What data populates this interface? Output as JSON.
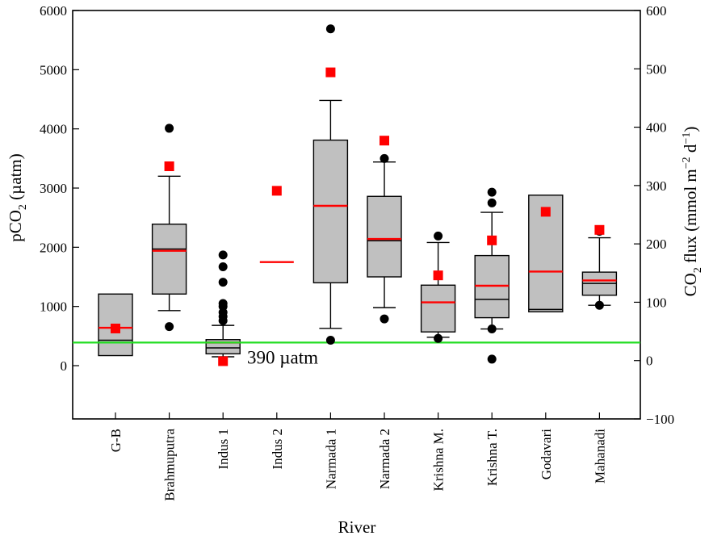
{
  "chart_data": {
    "type": "box",
    "xlabel": "River",
    "ylabel_main": "pCO",
    "ylabel_main_sub": "2",
    "ylabel_main_unit": " (µatm)",
    "ylabel_right": {
      "a": "CO",
      "sub": "2",
      "b": " flux (mmol m",
      "sup1": "−2",
      "c": " d",
      "sup2": "−1",
      "d": ")"
    },
    "ylim_left": [
      -900,
      6000
    ],
    "ylim_right": [
      -100,
      600
    ],
    "yticks_left": [
      0,
      1000,
      2000,
      3000,
      4000,
      5000,
      6000
    ],
    "yticks_right": [
      -100,
      0,
      100,
      200,
      300,
      400,
      500,
      600
    ],
    "categories": [
      "G-B",
      "Brahmuputra",
      "Indus 1",
      "Indus 2",
      "Narmada 1",
      "Narmada 2",
      "Krishna M.",
      "Krishna T.",
      "Godavari",
      "Mahanadi"
    ],
    "reference_line": {
      "value": 390,
      "label": "390 µatm",
      "color": "#22dd22"
    },
    "colors": {
      "box": "#c0c0c0",
      "mean": "#ff0000",
      "flux": "#ff0000",
      "outlier": "#000000",
      "median": "#000000"
    },
    "boxes": [
      {
        "q1": 170,
        "median": 430,
        "q3": 1210,
        "whisker_low": null,
        "whisker_high": null,
        "mean": 640,
        "outliers": [],
        "flux": 55
      },
      {
        "q1": 1210,
        "median": 1970,
        "q3": 2390,
        "whisker_low": 930,
        "whisker_high": 3200,
        "mean": 1940,
        "outliers": [
          660,
          4010
        ],
        "flux": 333
      },
      {
        "q1": 200,
        "median": 300,
        "q3": 440,
        "whisker_low": 150,
        "whisker_high": 680,
        "mean": 390,
        "outliers": [
          900,
          1000,
          1050,
          1410,
          1670,
          1870,
          760,
          830
        ],
        "flux": -1
      },
      {
        "q1": null,
        "median": null,
        "q3": null,
        "whisker_low": null,
        "whisker_high": null,
        "mean": 1750,
        "outliers": [],
        "flux": 291
      },
      {
        "q1": 1400,
        "median": 2700,
        "q3": 3810,
        "whisker_low": 630,
        "whisker_high": 4480,
        "mean": 2700,
        "outliers": [
          430,
          5690
        ],
        "flux": 494
      },
      {
        "q1": 1500,
        "median": 2110,
        "q3": 2860,
        "whisker_low": 980,
        "whisker_high": 3440,
        "mean": 2140,
        "outliers": [
          790,
          3500
        ],
        "flux": 377
      },
      {
        "q1": 570,
        "median": 1070,
        "q3": 1360,
        "whisker_low": 480,
        "whisker_high": 2080,
        "mean": 1070,
        "outliers": [
          460,
          2190
        ],
        "flux": 146
      },
      {
        "q1": 810,
        "median": 1120,
        "q3": 1860,
        "whisker_low": 620,
        "whisker_high": 2590,
        "mean": 1350,
        "outliers": [
          110,
          620,
          2750,
          2930
        ],
        "flux": 206
      },
      {
        "q1": 910,
        "median": 950,
        "q3": 2880,
        "whisker_low": null,
        "whisker_high": null,
        "mean": 1590,
        "outliers": [],
        "flux": 255
      },
      {
        "q1": 1190,
        "median": 1390,
        "q3": 1580,
        "whisker_low": 1020,
        "whisker_high": 2160,
        "mean": 1440,
        "outliers": [
          1020,
          2270
        ],
        "flux": 224
      }
    ]
  }
}
